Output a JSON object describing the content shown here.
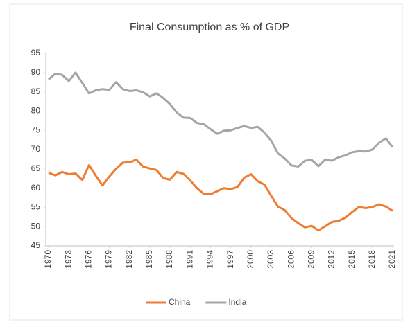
{
  "chart_data": {
    "type": "line",
    "title": "Final Consumption  as % of GDP",
    "x": [
      1970,
      1971,
      1972,
      1973,
      1974,
      1975,
      1976,
      1977,
      1978,
      1979,
      1980,
      1981,
      1982,
      1983,
      1984,
      1985,
      1986,
      1987,
      1988,
      1989,
      1990,
      1991,
      1992,
      1993,
      1994,
      1995,
      1996,
      1997,
      1998,
      1999,
      2000,
      2001,
      2002,
      2003,
      2004,
      2005,
      2006,
      2007,
      2008,
      2009,
      2010,
      2011,
      2012,
      2013,
      2014,
      2015,
      2016,
      2017,
      2018,
      2019,
      2020,
      2021
    ],
    "xlim": [
      1970,
      2021
    ],
    "xticks": [
      1970,
      1973,
      1976,
      1979,
      1982,
      1985,
      1988,
      1991,
      1994,
      1997,
      2000,
      2003,
      2006,
      2009,
      2012,
      2015,
      2018,
      2021
    ],
    "ylim": [
      45,
      95
    ],
    "yticks": [
      45,
      50,
      55,
      60,
      65,
      70,
      75,
      80,
      85,
      90,
      95
    ],
    "grid": false,
    "legend": "bottom",
    "series": [
      {
        "name": "China",
        "color": "#ed7d31",
        "values": [
          64,
          63.3,
          64.2,
          63.6,
          63.8,
          62.1,
          66,
          63.2,
          60.7,
          63,
          65,
          66.6,
          66.7,
          67.4,
          65.6,
          65.1,
          64.7,
          62.6,
          62.2,
          64.2,
          63.7,
          62,
          60,
          58.5,
          58.4,
          59.2,
          60,
          59.7,
          60.3,
          62.7,
          63.6,
          61.8,
          60.9,
          58,
          55.2,
          54.3,
          52.2,
          50.9,
          49.8,
          50.2,
          49,
          50.1,
          51.2,
          51.5,
          52.3,
          53.8,
          55.1,
          54.8,
          55.1,
          55.8,
          55.2,
          54.1
        ]
      },
      {
        "name": "India",
        "color": "#a5a5a5",
        "values": [
          88.2,
          89.7,
          89.4,
          87.8,
          90,
          87.3,
          84.6,
          85.4,
          85.7,
          85.5,
          87.5,
          85.7,
          85.2,
          85.4,
          84.9,
          83.8,
          84.6,
          83.4,
          81.8,
          79.6,
          78.3,
          78.2,
          76.9,
          76.6,
          75.3,
          74.1,
          74.9,
          75,
          75.6,
          76.1,
          75.6,
          75.9,
          74.4,
          72.3,
          69,
          67.7,
          65.9,
          65.6,
          67.1,
          67.3,
          65.7,
          67.4,
          67.1,
          68,
          68.5,
          69.3,
          69.6,
          69.5,
          70,
          71.8,
          72.9,
          70.6
        ]
      }
    ]
  }
}
